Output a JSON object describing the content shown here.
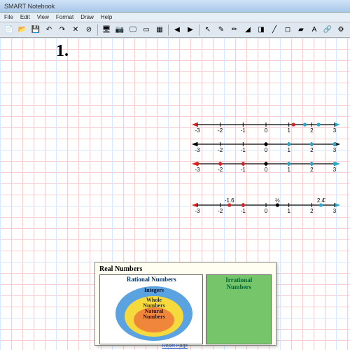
{
  "window": {
    "title": "SMART Notebook"
  },
  "menu": {
    "items": [
      "File",
      "Edit",
      "View",
      "Format",
      "Draw",
      "Help"
    ]
  },
  "toolbar": {
    "groups": [
      [
        "doc",
        "open",
        "save",
        "undo",
        "redo",
        "delete",
        "close"
      ],
      [
        "screen",
        "cam",
        "display",
        "board",
        "table"
      ],
      [
        "arrow-l",
        "arrow-r"
      ],
      [
        "pointer",
        "pen",
        "pen2",
        "hiliter",
        "eraser",
        "line",
        "shape",
        "fill",
        "text",
        "link",
        "props"
      ]
    ],
    "icons": {
      "doc": "📄",
      "open": "📂",
      "save": "💾",
      "undo": "↶",
      "redo": "↷",
      "delete": "✕",
      "close": "⊘",
      "screen": "🖥",
      "cam": "📷",
      "display": "🖵",
      "board": "▭",
      "table": "▦",
      "arrow-l": "◀",
      "arrow-r": "▶",
      "pointer": "↖",
      "pen": "✎",
      "pen2": "✏",
      "hiliter": "◢",
      "eraser": "◨",
      "line": "╱",
      "shape": "◻",
      "fill": "▰",
      "text": "A",
      "link": "🔗",
      "props": "⚙"
    }
  },
  "handwritten": "1.",
  "number_lines": {
    "range": [
      -3,
      3
    ],
    "ticks": [
      -3,
      -2,
      -1,
      0,
      1,
      2,
      3
    ],
    "lines": [
      {
        "axis_color": "#000000",
        "tick_color": "#000000",
        "left_arrow": "#e02020",
        "right_arrow": "#2aa8c9",
        "points": [
          {
            "x": 1.2,
            "color": "#e02020"
          },
          {
            "x": 1.7,
            "color": "#2aa8c9"
          },
          {
            "x": 2.3,
            "color": "#2aa8c9"
          }
        ]
      },
      {
        "axis_color": "#000000",
        "tick_color": "#000000",
        "left_arrow": "#000000",
        "right_arrow": "#000000",
        "points": [
          {
            "x": 0,
            "color": "#000000"
          },
          {
            "x": 1,
            "color": "#2aa8c9"
          },
          {
            "x": 2,
            "color": "#2aa8c9"
          },
          {
            "x": 3,
            "color": "#2aa8c9"
          }
        ]
      },
      {
        "axis_color": "#000000",
        "tick_color": "#000000",
        "left_arrow": "#e02020",
        "right_arrow": "#2aa8c9",
        "points": [
          {
            "x": -3,
            "color": "#e02020"
          },
          {
            "x": -2,
            "color": "#e02020"
          },
          {
            "x": -1,
            "color": "#e02020"
          },
          {
            "x": 0,
            "color": "#000000"
          },
          {
            "x": 1,
            "color": "#2aa8c9"
          },
          {
            "x": 2,
            "color": "#2aa8c9"
          },
          {
            "x": 3,
            "color": "#2aa8c9"
          }
        ]
      }
    ],
    "line4": {
      "axis_color": "#000000",
      "left_arrow": "#e02020",
      "right_arrow": "#2aa8c9",
      "ticks": [
        -3,
        -2,
        -1,
        0,
        1,
        2,
        3
      ],
      "points": [
        {
          "x": -1.6,
          "color": "#e02020",
          "label": "-1.6",
          "label_dy": -4
        },
        {
          "x": -1.0,
          "color": "#e02020"
        },
        {
          "x": 0.5,
          "color": "#000000",
          "label": "½",
          "label_dy": -4
        },
        {
          "x": 2.4,
          "color": "#2aa8c9",
          "label": "2.4̄",
          "label_dy": -4
        }
      ]
    }
  },
  "venn": {
    "title": "Real Numbers",
    "rational": "Rational Numbers",
    "integers": "Integers",
    "whole": "Whole Numbers",
    "natural": "Natural Numbers",
    "irrational": "Irrational Numbers"
  },
  "footer": "Reset Page",
  "colors": {
    "grid_minor": "#f7cfcf",
    "grid_major": "#d7e9ff",
    "red": "#e02020",
    "teal": "#2aa8c9",
    "venn_bg": "#fffef0",
    "irr_bg": "#77c56a",
    "int_bg": "#5aa3e0",
    "whole_bg": "#f5d93d",
    "nat_bg": "#f0863a"
  }
}
